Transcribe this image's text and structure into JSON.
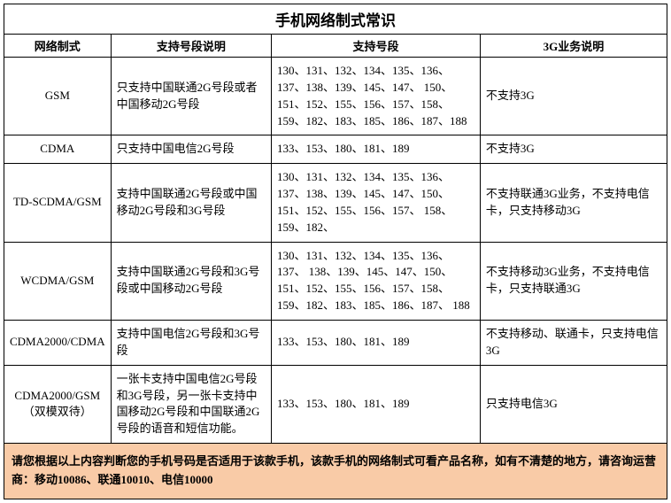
{
  "title": "手机网络制式常识",
  "columns": [
    "网络制式",
    "支持号段说明",
    "支持号段",
    "3G业务说明"
  ],
  "rows": [
    {
      "network": "GSM",
      "desc": "只支持中国联通2G号段或者中国移动2G号段",
      "segments": "130、131、132、134、135、136、137、138、139、145、147、 150、151、152、155、156、157、158、159、182、183、185、186、187、188",
      "service3g": "不支持3G"
    },
    {
      "network": "CDMA",
      "desc": "只支持中国电信2G号段",
      "segments": "133、153、180、181、189",
      "service3g": "不支持3G"
    },
    {
      "network": "TD-SCDMA/GSM",
      "desc": "支持中国联通2G号段或中国移动2G号段和3G号段",
      "segments": "130、131、132、134、135、136、137、138、139、145、147、150、151、152、155、156、157、 158、159、182、",
      "service3g": "不支持联通3G业务，不支持电信卡，只支持移动3G"
    },
    {
      "network": "WCDMA/GSM",
      "desc": "支持中国联通2G号段和3G号段或中国移动2G号段",
      "segments": "130、131、132、134、135、136、137、 138、139、145、147、150、151、152、155、156、157、158、159、182、183、185、186、187、 188",
      "service3g": "不支持移动3G业务，不支持电信卡，只支持联通3G"
    },
    {
      "network": "CDMA2000/CDMA",
      "desc": "支持中国电信2G号段和3G号段",
      "segments": "133、153、180、181、189",
      "service3g": "不支持移动、联通卡，只支持电信3G"
    },
    {
      "network": "CDMA2000/GSM（双模双待）",
      "desc": "一张卡支持中国电信2G号段和3G号段，另一张卡支持中国移动2G号段和中国联通2G号段的语音和短信功能。",
      "segments": "133、153、180、181、189",
      "service3g": "只支持电信3G"
    }
  ],
  "note": "请您根据以上内容判断您的手机号码是否适用于该款手机，该款手机的网络制式可看产品名称，如有不清楚的地方，请咨询运营商：移动10086、联通10010、电信10000",
  "colors": {
    "note_bg": "#f9cba7",
    "border": "#000000",
    "text": "#000000",
    "bg": "#ffffff"
  }
}
